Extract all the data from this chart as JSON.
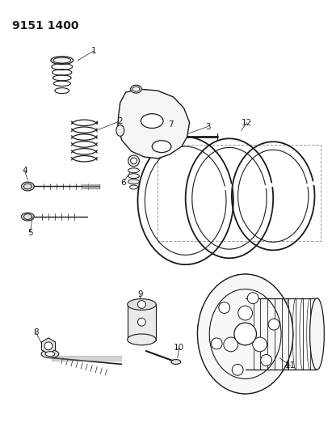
{
  "title": "9151 1400",
  "bg_color": "#ffffff",
  "line_color": "#1a1a1a",
  "title_fontsize": 10,
  "fig_width": 4.11,
  "fig_height": 5.33,
  "dpi": 100
}
